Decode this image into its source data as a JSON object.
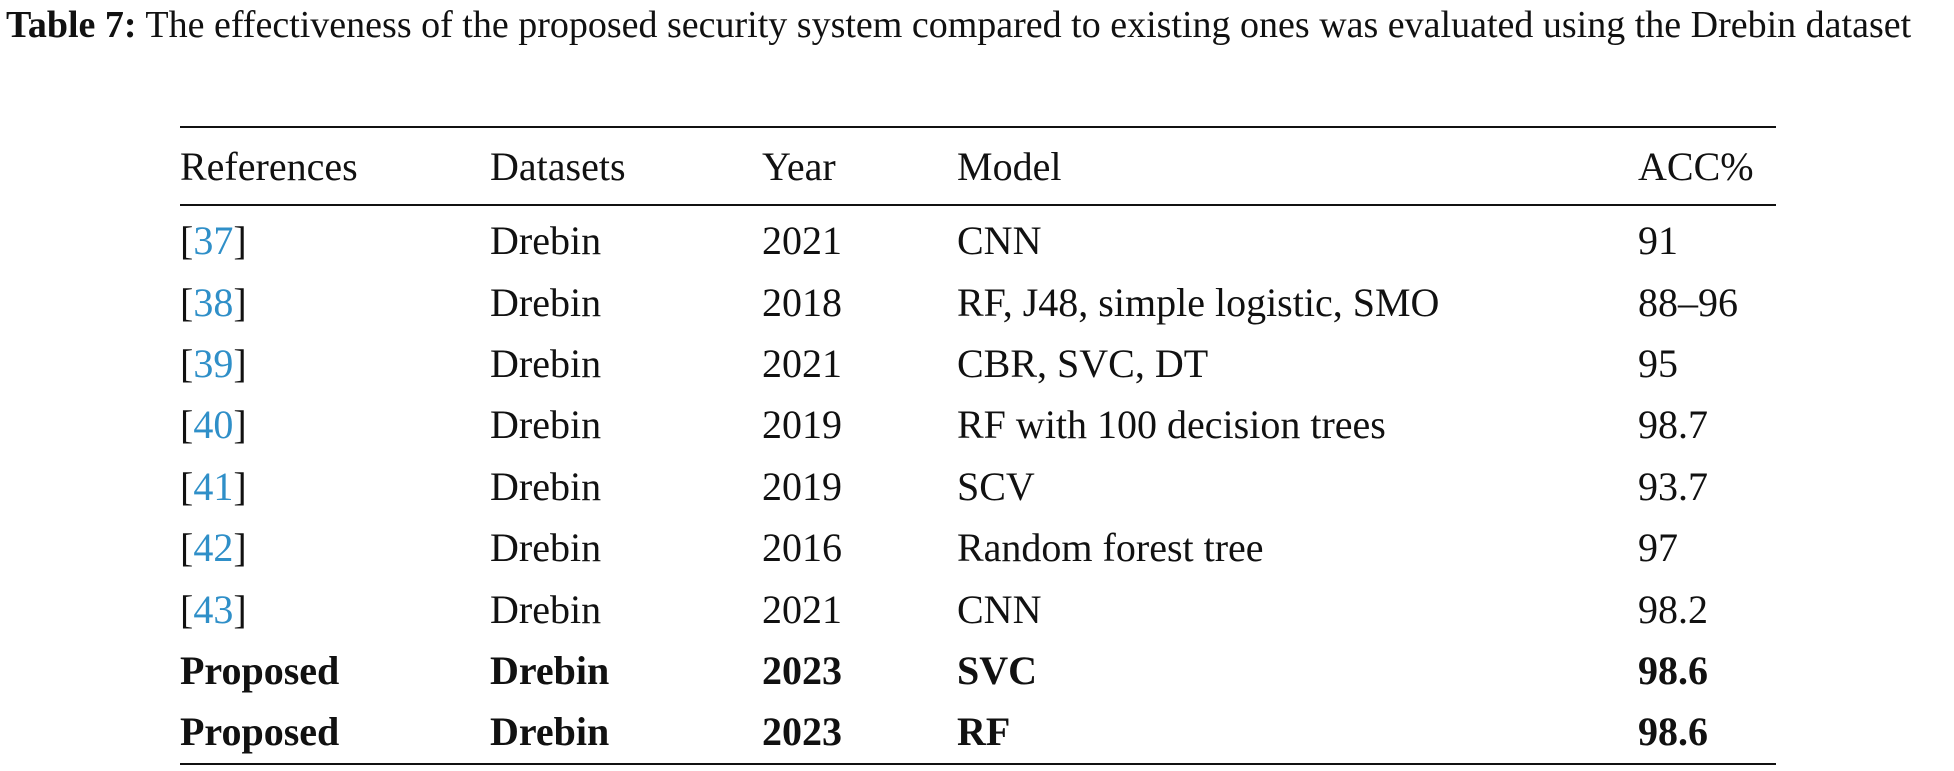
{
  "caption": {
    "label": "Table 7:",
    "text": " The effectiveness of the proposed security system compared to existing ones was evaluated using the Drebin dataset"
  },
  "table": {
    "headers": [
      "References",
      "Datasets",
      "Year",
      "Model",
      "ACC%"
    ],
    "rows": [
      {
        "ref_open": "[",
        "ref": "37",
        "ref_close": "]",
        "dataset": "Drebin",
        "year": "2021",
        "model": "CNN",
        "acc": "91"
      },
      {
        "ref_open": "[",
        "ref": "38",
        "ref_close": "]",
        "dataset": "Drebin",
        "year": "2018",
        "model": "RF, J48, simple logistic, SMO",
        "acc": "88–96"
      },
      {
        "ref_open": "[",
        "ref": "39",
        "ref_close": "]",
        "dataset": "Drebin",
        "year": "2021",
        "model": "CBR, SVC, DT",
        "acc": "95"
      },
      {
        "ref_open": "[",
        "ref": "40",
        "ref_close": "]",
        "dataset": "Drebin",
        "year": "2019",
        "model": "RF with 100 decision trees",
        "acc": "98.7"
      },
      {
        "ref_open": "[",
        "ref": "41",
        "ref_close": "]",
        "dataset": "Drebin",
        "year": "2019",
        "model": "SCV",
        "acc": "93.7"
      },
      {
        "ref_open": "[",
        "ref": "42",
        "ref_close": "]",
        "dataset": "Drebin",
        "year": "2016",
        "model": "Random forest tree",
        "acc": "97"
      },
      {
        "ref_open": "[",
        "ref": "43",
        "ref_close": "]",
        "dataset": "Drebin",
        "year": "2021",
        "model": "CNN",
        "acc": "98.2"
      },
      {
        "ref": "Proposed",
        "dataset": "Drebin",
        "year": "2023",
        "model": "SVC",
        "acc": "98.6"
      },
      {
        "ref": "Proposed",
        "dataset": "Drebin",
        "year": "2023",
        "model": "RF",
        "acc": "98.6"
      }
    ]
  },
  "colors": {
    "reference_link": "#2f8fc8",
    "text": "#111111"
  }
}
